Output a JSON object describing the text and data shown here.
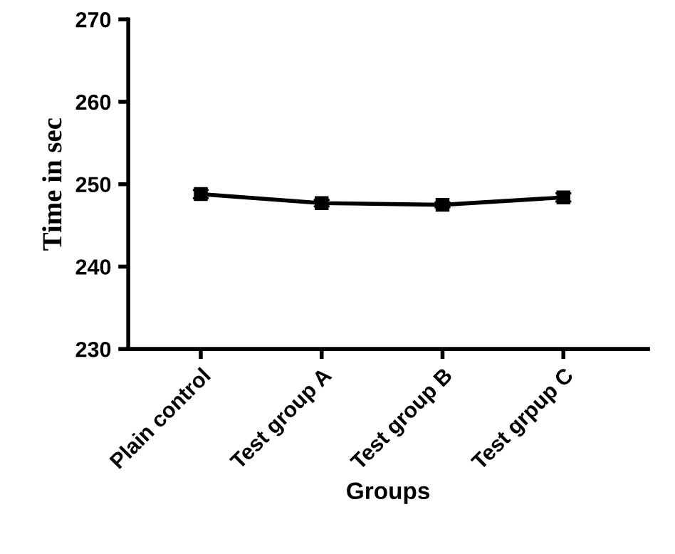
{
  "chart_data": {
    "type": "line",
    "xlabel": "Groups",
    "ylabel": "Time in sec",
    "categories": [
      "Plain control",
      "Test group A",
      "Test group B",
      "Test grpup C"
    ],
    "series": [
      {
        "color": "#000000",
        "values": [
          248.8,
          247.7,
          247.5,
          248.4
        ],
        "errors": [
          0.5,
          0.4,
          0.3,
          0.5
        ]
      }
    ],
    "ylim": [
      230,
      270
    ],
    "yticks": [
      230,
      240,
      250,
      260,
      270
    ],
    "grid": false,
    "legend": false,
    "marker": "square",
    "line_style": "solid"
  }
}
